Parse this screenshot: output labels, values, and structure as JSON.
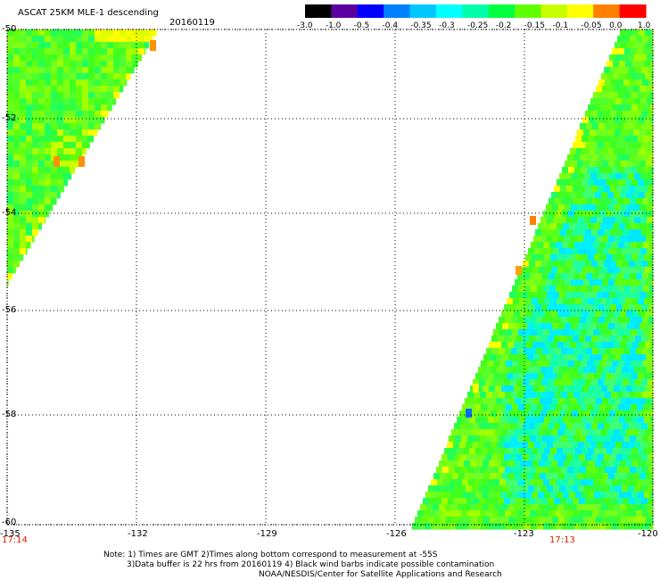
{
  "header": {
    "title": "ASCAT 25KM MLE-1 descending",
    "date": "20160119"
  },
  "colorbar": {
    "labels": [
      "-3.0",
      "-1.0",
      "-0.5",
      "-0.4",
      "-0.35",
      "-0.3",
      "-0.25",
      "-0.2",
      "-0.15",
      "-0.1",
      "-0.05",
      "0.0",
      "1.0"
    ],
    "colors": [
      "#000000",
      "#5a00a0",
      "#0000ff",
      "#0080ff",
      "#00c8ff",
      "#00ffff",
      "#00ffaa",
      "#00ff40",
      "#60ff00",
      "#c8ff00",
      "#ffff00",
      "#ff8000",
      "#ff0000"
    ]
  },
  "axes": {
    "y_labels": [
      "-50",
      "-52",
      "-54",
      "-56",
      "-58",
      "-60"
    ],
    "x_labels": [
      "-135",
      "-132",
      "-129",
      "-126",
      "-123",
      "-120"
    ],
    "x_range": [
      -135,
      -120
    ],
    "y_range": [
      -60,
      -50
    ]
  },
  "times": {
    "left": "17:14",
    "right": "17:13"
  },
  "notes": {
    "line1": "Note: 1) Times are GMT 2)Times along bottom correspond to measurement at -55S",
    "line2": "3)Data buffer is 22 hrs from 20160119 4) Black wind barbs indicate possible contamination",
    "line3": "NOAA/NESDIS/Center for Satellite Applications and Research"
  }
}
